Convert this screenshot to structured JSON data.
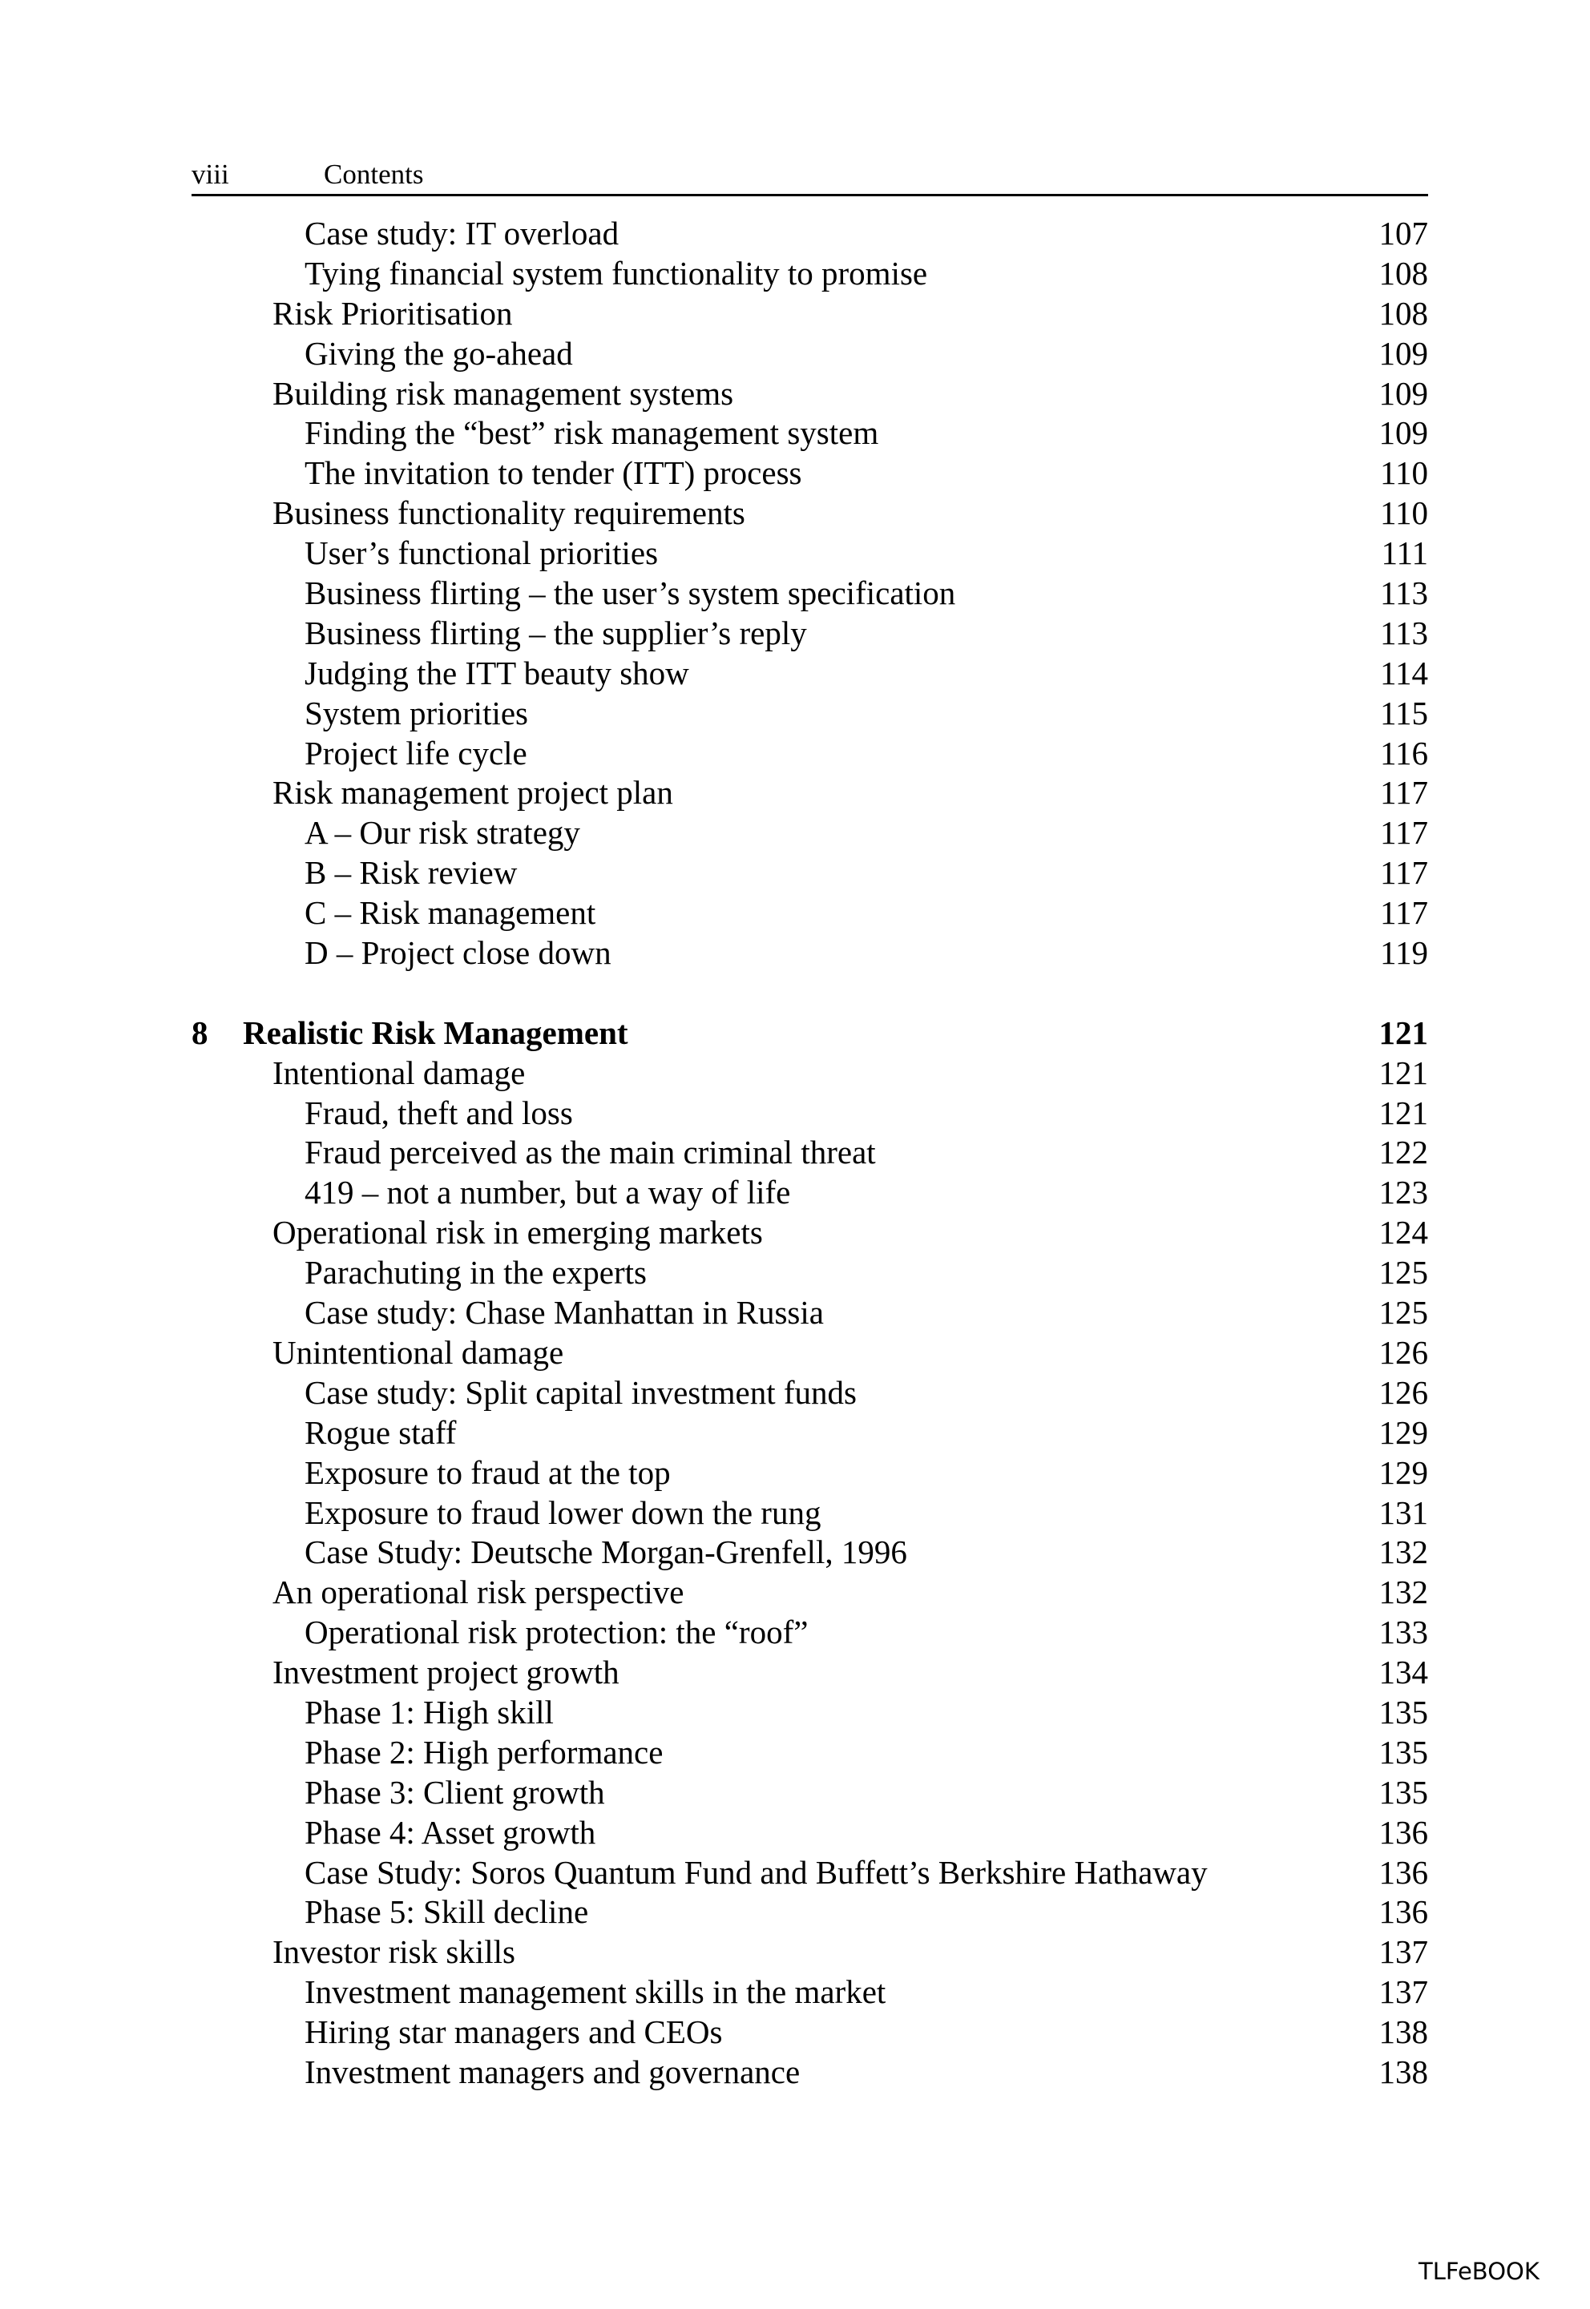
{
  "header": {
    "folio": "viii",
    "running_title": "Contents"
  },
  "toc": [
    {
      "level": 2,
      "title": "Case study: IT overload",
      "page": "107"
    },
    {
      "level": 2,
      "title": "Tying financial system functionality to promise",
      "page": "108"
    },
    {
      "level": 1,
      "title": "Risk Prioritisation",
      "page": "108"
    },
    {
      "level": 2,
      "title": "Giving the go-ahead",
      "page": "109"
    },
    {
      "level": 1,
      "title": "Building risk management systems",
      "page": "109"
    },
    {
      "level": 2,
      "title": "Finding the “best” risk management system",
      "page": "109"
    },
    {
      "level": 2,
      "title": "The invitation to tender (ITT) process",
      "page": "110"
    },
    {
      "level": 1,
      "title": "Business functionality requirements",
      "page": "110"
    },
    {
      "level": 2,
      "title": "User’s functional priorities",
      "page": "111"
    },
    {
      "level": 2,
      "title": "Business flirting – the user’s system specification",
      "page": "113"
    },
    {
      "level": 2,
      "title": "Business flirting – the supplier’s reply",
      "page": "113"
    },
    {
      "level": 2,
      "title": "Judging the ITT beauty show",
      "page": "114"
    },
    {
      "level": 2,
      "title": "System priorities",
      "page": "115"
    },
    {
      "level": 2,
      "title": "Project life cycle",
      "page": "116"
    },
    {
      "level": 1,
      "title": "Risk management project plan",
      "page": "117"
    },
    {
      "level": 2,
      "title": "A – Our risk strategy",
      "page": "117"
    },
    {
      "level": 2,
      "title": "B – Risk review",
      "page": "117"
    },
    {
      "level": 2,
      "title": "C – Risk management",
      "page": "117"
    },
    {
      "level": 2,
      "title": "D – Project close down",
      "page": "119"
    },
    {
      "level": 0,
      "number": "8",
      "title": "Realistic Risk Management",
      "page": "121"
    },
    {
      "level": 1,
      "title": "Intentional damage",
      "page": "121"
    },
    {
      "level": 2,
      "title": "Fraud, theft and loss",
      "page": "121"
    },
    {
      "level": 2,
      "title": "Fraud perceived as the main criminal threat",
      "page": "122"
    },
    {
      "level": 2,
      "title": "419 – not a number, but a way of life",
      "page": "123"
    },
    {
      "level": 1,
      "title": "Operational risk in emerging markets",
      "page": "124"
    },
    {
      "level": 2,
      "title": "Parachuting in the experts",
      "page": "125"
    },
    {
      "level": 2,
      "title": "Case study: Chase Manhattan in Russia",
      "page": "125"
    },
    {
      "level": 1,
      "title": "Unintentional damage",
      "page": "126"
    },
    {
      "level": 2,
      "title": "Case study: Split capital investment funds",
      "page": "126"
    },
    {
      "level": 2,
      "title": "Rogue staff",
      "page": "129"
    },
    {
      "level": 2,
      "title": "Exposure to fraud at the top",
      "page": "129"
    },
    {
      "level": 2,
      "title": "Exposure to fraud lower down the rung",
      "page": "131"
    },
    {
      "level": 2,
      "title": "Case Study: Deutsche Morgan-Grenfell, 1996",
      "page": "132"
    },
    {
      "level": 1,
      "title": "An operational risk perspective",
      "page": "132"
    },
    {
      "level": 2,
      "title": "Operational risk protection: the “roof”",
      "page": "133"
    },
    {
      "level": 1,
      "title": "Investment project growth",
      "page": "134"
    },
    {
      "level": 2,
      "title": "Phase 1: High skill",
      "page": "135"
    },
    {
      "level": 2,
      "title": "Phase 2: High performance",
      "page": "135"
    },
    {
      "level": 2,
      "title": "Phase 3: Client growth",
      "page": "135"
    },
    {
      "level": 2,
      "title": "Phase 4: Asset growth",
      "page": "136"
    },
    {
      "level": 2,
      "title": "Case Study: Soros Quantum Fund and Buffett’s Berkshire Hathaway",
      "page": "136"
    },
    {
      "level": 2,
      "title": "Phase 5: Skill decline",
      "page": "136"
    },
    {
      "level": 1,
      "title": "Investor risk skills",
      "page": "137"
    },
    {
      "level": 2,
      "title": "Investment management skills in the market",
      "page": "137"
    },
    {
      "level": 2,
      "title": "Hiring star managers and CEOs",
      "page": "138"
    },
    {
      "level": 2,
      "title": "Investment managers and governance",
      "page": "138"
    }
  ],
  "footer": {
    "watermark": "TLFeBOOK"
  }
}
